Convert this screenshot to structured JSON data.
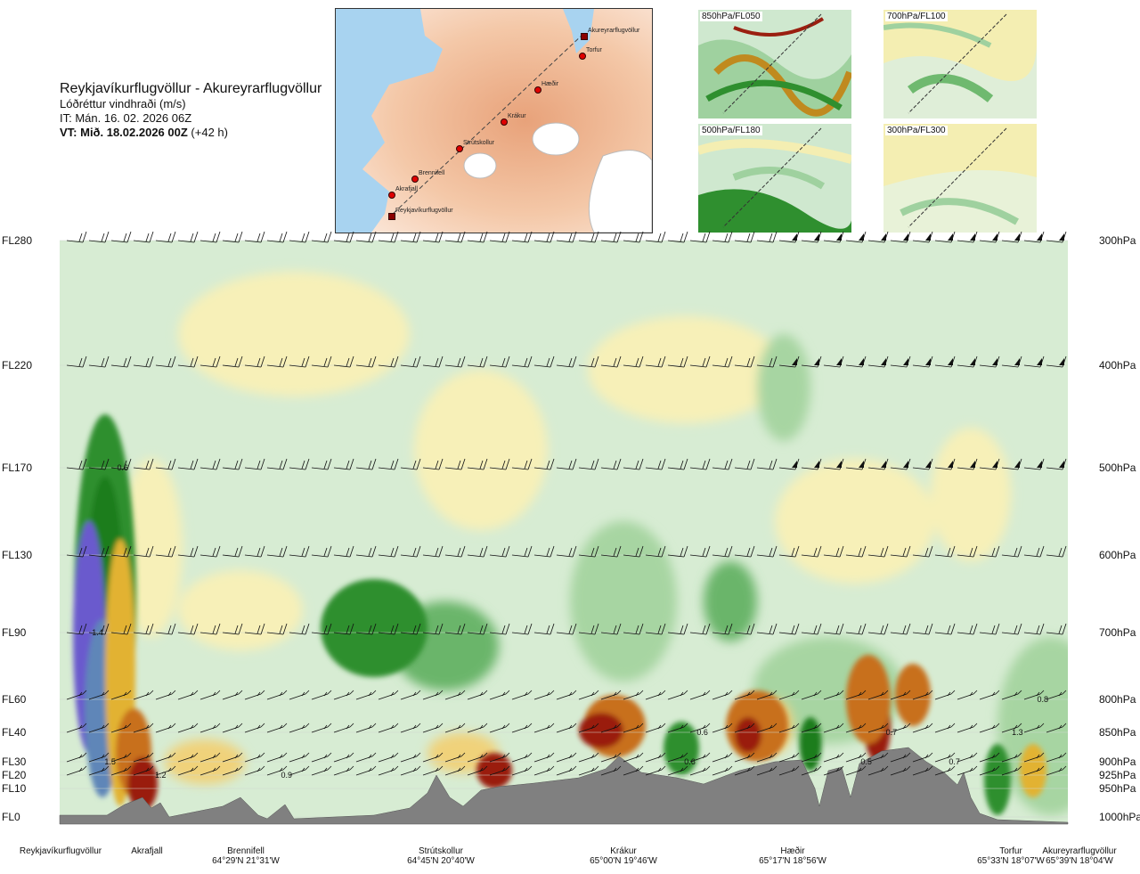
{
  "header": {
    "route_title": "Reykjavíkurflugvöllur - Akureyrarflugvöllur",
    "quantity": "Lóðréttur vindhraði (m/s)",
    "issue_time": "IT: Mán. 16. 02. 2026 06Z",
    "valid_time": "VT: Mið. 18.02.2026 00Z",
    "lead_time": "(+42 h)"
  },
  "route_map": {
    "waypoints": [
      "Akureyrarflugvöllur",
      "Torfur",
      "Hæðir",
      "Krákur",
      "Strútskollur",
      "Brennifell",
      "Akrafjall",
      "Reykjavíkurflugvöllur"
    ]
  },
  "mini_maps": [
    {
      "label": "850hPa/FL050"
    },
    {
      "label": "700hPa/FL100"
    },
    {
      "label": "500hPa/FL180"
    },
    {
      "label": "300hPa/FL300"
    }
  ],
  "chart_data": {
    "type": "heatmap",
    "y_left_ticks": [
      "FL280",
      "FL220",
      "FL170",
      "FL130",
      "FL90",
      "FL60",
      "FL40",
      "FL30",
      "FL20",
      "FL10",
      "FL0"
    ],
    "y_right_ticks": [
      "300hPa",
      "400hPa",
      "500hPa",
      "600hPa",
      "700hPa",
      "800hPa",
      "850hPa",
      "900hPa",
      "925hPa",
      "950hPa",
      "1000hPa"
    ],
    "pressure_levels_hpa": [
      300,
      400,
      500,
      600,
      700,
      800,
      850,
      900,
      925,
      950,
      1000
    ],
    "x_stations": [
      {
        "name": "Reykjavíkurflugvöllur",
        "coord": ""
      },
      {
        "name": "Akrafjall",
        "coord": ""
      },
      {
        "name": "Brennifell",
        "coord": "64°29'N 21°31'W"
      },
      {
        "name": "Strútskollur",
        "coord": "64°45'N 20°40'W"
      },
      {
        "name": "Krákur",
        "coord": "65°00'N 19°46'W"
      },
      {
        "name": "Hæðir",
        "coord": "65°17'N 18°56'W"
      },
      {
        "name": "Torfur",
        "coord": "65°33'N 18°07'W"
      },
      {
        "name": "Akureyrarflugvöllur",
        "coord": "65°39'N 18°04'W"
      }
    ],
    "contour_labels": [
      {
        "text": "0.6",
        "x_km": 5.0,
        "level": "FL170"
      },
      {
        "text": "1.4",
        "x_km": 3.0,
        "level": "FL90"
      },
      {
        "text": "1.5",
        "x_km": 4.0,
        "level": "FL30"
      },
      {
        "text": "1.2",
        "x_km": 8.0,
        "level": "FL20"
      },
      {
        "text": "0.9",
        "x_km": 18.0,
        "level": "FL20"
      },
      {
        "text": "0.6",
        "x_km": 51.0,
        "level": "FL40"
      },
      {
        "text": "0.6",
        "x_km": 50.0,
        "level": "FL30"
      },
      {
        "text": "0.5",
        "x_km": 64.0,
        "level": "FL30"
      },
      {
        "text": "0.7",
        "x_km": 66.0,
        "level": "FL40"
      },
      {
        "text": "0.7",
        "x_km": 71.0,
        "level": "FL30"
      },
      {
        "text": "1.3",
        "x_km": 76.0,
        "level": "FL40"
      },
      {
        "text": "0.8",
        "x_km": 78.0,
        "level": "FL60"
      }
    ],
    "palette": {
      "up_strong": "#6a5acd",
      "up_mid": "#1a7d1a",
      "up_weak": "#cfe8cf",
      "neutral": "#f8f8e8",
      "down_weak": "#f6ecaa",
      "down_mid": "#e2b233",
      "down_strong": "#9a1f10",
      "terrain": "#808080"
    }
  }
}
